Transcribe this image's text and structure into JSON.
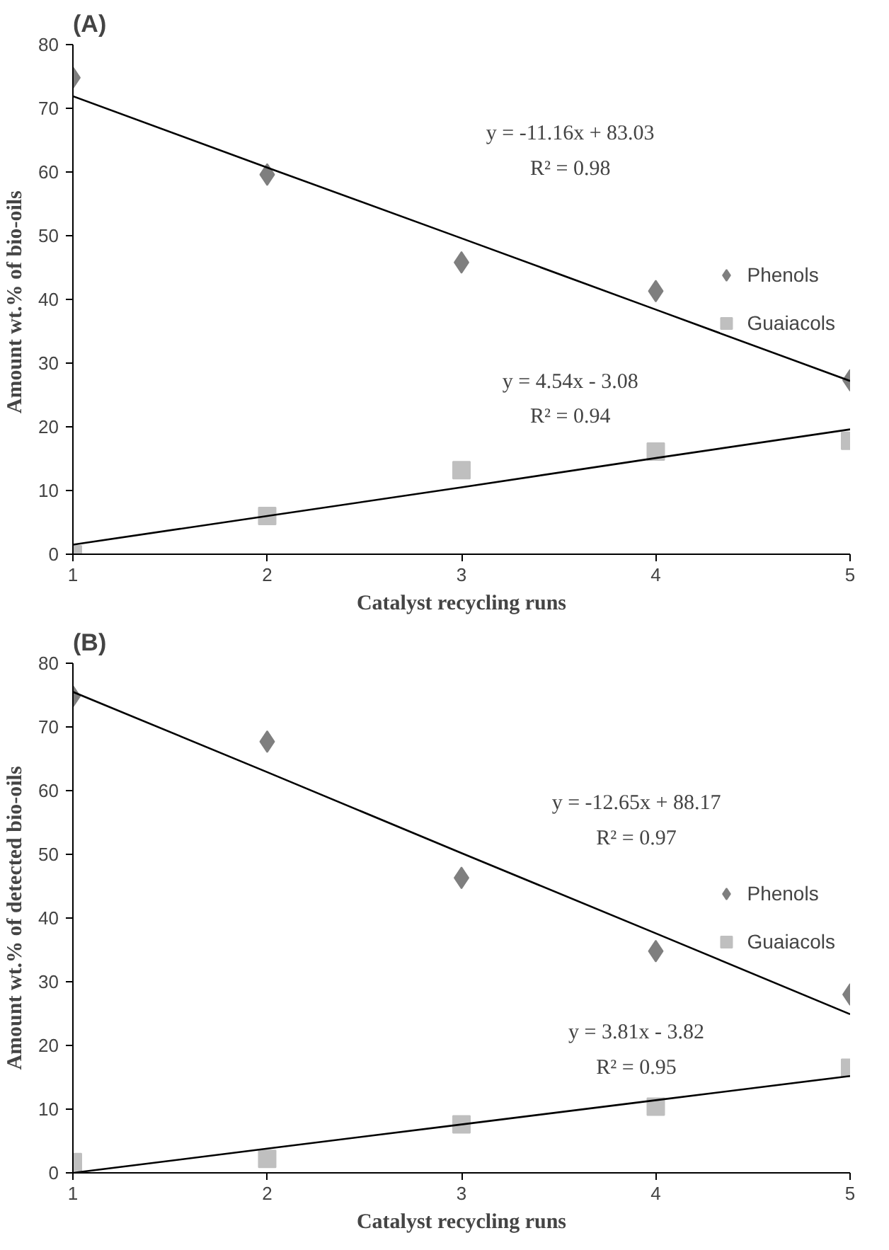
{
  "chart_data": [
    {
      "type": "scatter",
      "title": "(A)",
      "xlabel": "Catalyst recycling runs",
      "ylabel": "Amount wt.% of  bio-oils",
      "x": [
        1,
        2,
        3,
        4,
        5
      ],
      "xlim": [
        1,
        5
      ],
      "xticks": [
        1,
        2,
        3,
        4,
        5
      ],
      "ylim": [
        0,
        80
      ],
      "yticks": [
        0,
        10,
        20,
        30,
        40,
        50,
        60,
        70,
        80
      ],
      "grid": false,
      "legend": "right",
      "series": [
        {
          "name": "Phenols",
          "color": "#7f7f7f",
          "marker": "diamond",
          "values": [
            74.8,
            59.6,
            45.8,
            41.3,
            27.3
          ]
        },
        {
          "name": "Guaiacols",
          "color": "#bfbfbf",
          "marker": "square",
          "values": [
            0,
            6,
            13.2,
            16.1,
            17.8
          ]
        },
        {
          "type": "line",
          "color": "#000000",
          "marker": "none",
          "values": [
            71.9,
            60.7,
            49.6,
            38.4,
            27.2
          ]
        },
        {
          "type": "line",
          "color": "#000000",
          "marker": "none",
          "values": [
            1.5,
            6.0,
            10.5,
            15.1,
            19.6
          ]
        }
      ],
      "annotations": [
        "y = -11.16x + 83.03",
        "R² = 0.98",
        "y = 4.54x - 3.08",
        "R² = 0.94"
      ]
    },
    {
      "type": "scatter",
      "title": "(B)",
      "xlabel": "Catalyst recycling runs",
      "ylabel": "Amount wt.% of detected bio-oils",
      "x": [
        1,
        2,
        3,
        4,
        5
      ],
      "xlim": [
        1,
        5
      ],
      "xticks": [
        1,
        2,
        3,
        4,
        5
      ],
      "ylim": [
        0,
        80
      ],
      "yticks": [
        0,
        10,
        20,
        30,
        40,
        50,
        60,
        70,
        80
      ],
      "grid": false,
      "legend": "right",
      "series": [
        {
          "name": "Phenols",
          "color": "#7f7f7f",
          "marker": "diamond",
          "values": [
            74.8,
            67.7,
            46.3,
            34.8,
            28
          ]
        },
        {
          "name": "Guaiacols",
          "color": "#bfbfbf",
          "marker": "square",
          "values": [
            1.7,
            2.2,
            7.6,
            10.4,
            16.5
          ]
        },
        {
          "type": "line",
          "color": "#000000",
          "marker": "none",
          "values": [
            75.5,
            62.9,
            50.2,
            37.6,
            24.9
          ]
        },
        {
          "type": "line",
          "color": "#000000",
          "marker": "none",
          "values": [
            0,
            3.8,
            7.6,
            11.4,
            15.2
          ]
        }
      ],
      "annotations": [
        "y = -12.65x + 88.17",
        "R² = 0.97",
        "y = 3.81x - 3.82",
        "R² = 0.95"
      ]
    }
  ]
}
